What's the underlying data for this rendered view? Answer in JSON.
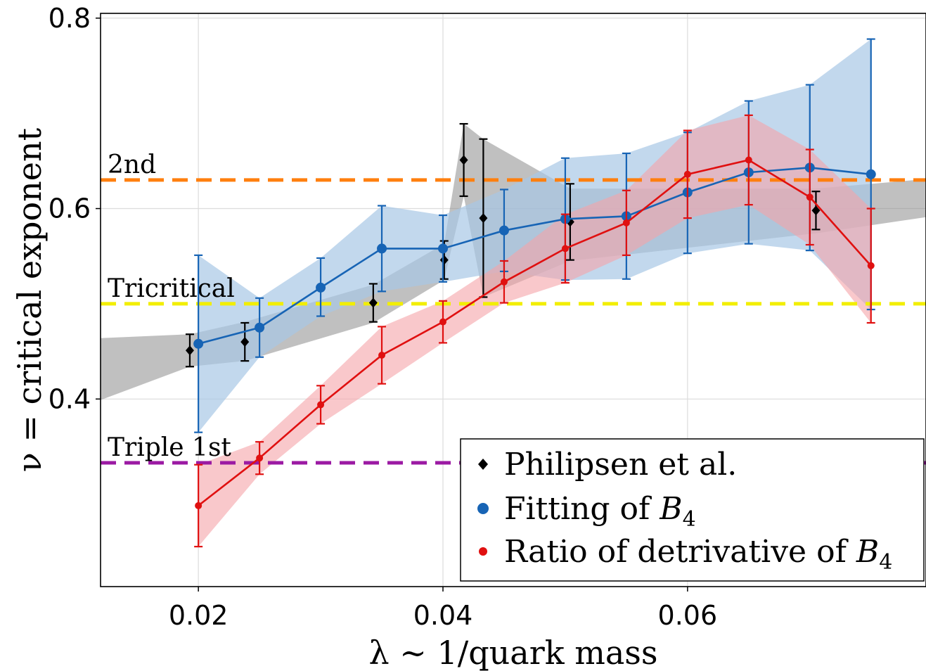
{
  "chart_data": {
    "type": "line",
    "xlabel": "λ ∼ 1/quark mass",
    "ylabel": "ν = critical exponent",
    "xlim": [
      0.012,
      0.0795
    ],
    "ylim": [
      0.203,
      0.805
    ],
    "xticks": [
      0.02,
      0.04,
      0.06
    ],
    "xtick_labels": [
      "0.02",
      "0.04",
      "0.06"
    ],
    "yticks": [
      0.4,
      0.6,
      0.8
    ],
    "ytick_labels": [
      "0.4",
      "0.6",
      "0.8"
    ],
    "grid": true,
    "legend_position": "bottom-right",
    "reference_lines": [
      {
        "label": "2nd",
        "y": 0.63,
        "color": "#ff7f0e"
      },
      {
        "label": "Tricritical",
        "y": 0.5,
        "color": "#f2ee00"
      },
      {
        "label": "Triple 1st",
        "y": 0.333,
        "color": "#9b1aa3"
      }
    ],
    "series": [
      {
        "name": "Philipsen et al.",
        "legend_text": "Philipsen et al.",
        "color": "#000000",
        "marker": "diamond",
        "x": [
          0.0193,
          0.0238,
          0.0343,
          0.0401,
          0.0417,
          0.0433,
          0.0504,
          0.0705
        ],
        "y": [
          0.451,
          0.46,
          0.501,
          0.546,
          0.651,
          0.59,
          0.586,
          0.598
        ],
        "yerr": [
          0.017,
          0.02,
          0.02,
          0.02,
          0.038,
          0.083,
          0.04,
          0.02
        ],
        "band": {
          "x": [
            0.012,
            0.0193,
            0.0238,
            0.0343,
            0.0401,
            0.0417,
            0.0433,
            0.0504,
            0.0705,
            0.0795
          ],
          "upper": [
            0.464,
            0.468,
            0.481,
            0.52,
            0.563,
            0.689,
            0.673,
            0.621,
            0.621,
            0.631
          ],
          "lower": [
            0.399,
            0.434,
            0.44,
            0.48,
            0.525,
            0.613,
            0.507,
            0.545,
            0.574,
            0.591
          ]
        }
      },
      {
        "name": "Fitting of B4",
        "legend_text": "Fitting of ",
        "legend_math": "B",
        "legend_sub": "4",
        "color": "#1764b5",
        "band_color": "#a8c8e6",
        "marker": "circle",
        "x": [
          0.02,
          0.025,
          0.03,
          0.035,
          0.04,
          0.045,
          0.05,
          0.055,
          0.06,
          0.065,
          0.07,
          0.075
        ],
        "y": [
          0.458,
          0.475,
          0.517,
          0.558,
          0.558,
          0.577,
          0.589,
          0.592,
          0.617,
          0.638,
          0.643,
          0.636
        ],
        "yerr_upper": [
          0.551,
          0.506,
          0.548,
          0.603,
          0.593,
          0.62,
          0.653,
          0.658,
          0.68,
          0.713,
          0.73,
          0.778
        ],
        "yerr_lower": [
          0.365,
          0.444,
          0.487,
          0.513,
          0.523,
          0.534,
          0.525,
          0.526,
          0.553,
          0.563,
          0.556,
          0.494
        ]
      },
      {
        "name": "Ratio of detrivative of B4",
        "legend_text": "Ratio of detrivative of ",
        "legend_math": "B",
        "legend_sub": "4",
        "color": "#e01010",
        "band_color": "#f5a3a8",
        "marker": "circle-small",
        "x": [
          0.02,
          0.025,
          0.03,
          0.035,
          0.04,
          0.045,
          0.05,
          0.055,
          0.06,
          0.065,
          0.07,
          0.075
        ],
        "y": [
          0.288,
          0.338,
          0.394,
          0.446,
          0.481,
          0.523,
          0.558,
          0.585,
          0.636,
          0.651,
          0.612,
          0.54
        ],
        "yerr_upper": [
          0.331,
          0.355,
          0.414,
          0.476,
          0.503,
          0.545,
          0.594,
          0.619,
          0.682,
          0.698,
          0.662,
          0.6
        ],
        "yerr_lower": [
          0.245,
          0.321,
          0.374,
          0.416,
          0.459,
          0.501,
          0.522,
          0.551,
          0.59,
          0.604,
          0.562,
          0.48
        ]
      }
    ]
  }
}
